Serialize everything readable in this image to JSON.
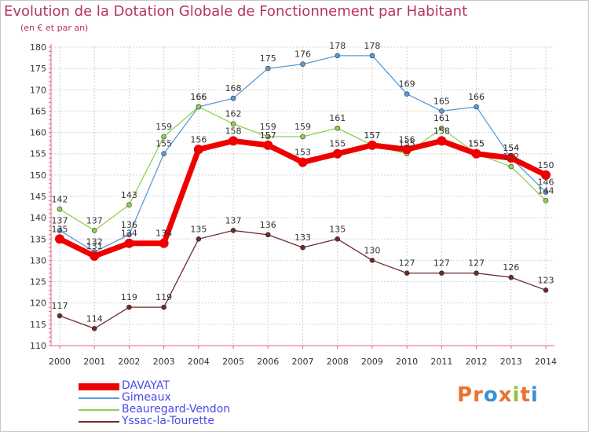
{
  "title": "Evolution de la Dotation Globale de Fonctionnement par Habitant",
  "subtitle": "(en € et par an)",
  "logo": "Proxiti",
  "chart_data": {
    "type": "line",
    "title": "Evolution de la Dotation Globale de Fonctionnement par Habitant",
    "subtitle": "(en € et par an)",
    "x": [
      "2000",
      "2001",
      "2002",
      "2003",
      "2004",
      "2005",
      "2006",
      "2007",
      "2008",
      "2009",
      "2010",
      "2011",
      "2012",
      "2013",
      "2014"
    ],
    "ylim": [
      110,
      180
    ],
    "yticks": [
      110,
      115,
      120,
      125,
      130,
      135,
      140,
      145,
      150,
      155,
      160,
      165,
      170,
      175,
      180
    ],
    "grid": true,
    "legend_position": "bottom-left",
    "series": [
      {
        "name": "Gimeaux",
        "color": "#5b9bd5",
        "values": [
          137,
          132,
          136,
          155,
          166,
          168,
          175,
          176,
          178,
          178,
          169,
          165,
          166,
          154,
          146
        ]
      },
      {
        "name": "Beauregard-Vendon",
        "color": "#8fd14f",
        "values": [
          142,
          137,
          143,
          159,
          166,
          162,
          159,
          159,
          161,
          157,
          155,
          161,
          155,
          152,
          144
        ]
      },
      {
        "name": "Yssac-la-Tourette",
        "color": "#6e2a2a",
        "values": [
          117,
          114,
          119,
          119,
          135,
          137,
          136,
          133,
          135,
          130,
          127,
          127,
          127,
          126,
          123
        ]
      },
      {
        "name": "DAVAYAT",
        "color": "#ee0000",
        "values": [
          135,
          131,
          134,
          134,
          156,
          158,
          157,
          153,
          155,
          157,
          156,
          158,
          155,
          154,
          150
        ]
      }
    ]
  },
  "legend": [
    {
      "name": "DAVAYAT",
      "color": "#ee0000"
    },
    {
      "name": "Gimeaux",
      "color": "#5b9bd5"
    },
    {
      "name": "Beauregard-Vendon",
      "color": "#8fd14f"
    },
    {
      "name": "Yssac-la-Tourette",
      "color": "#6e2a2a"
    }
  ]
}
